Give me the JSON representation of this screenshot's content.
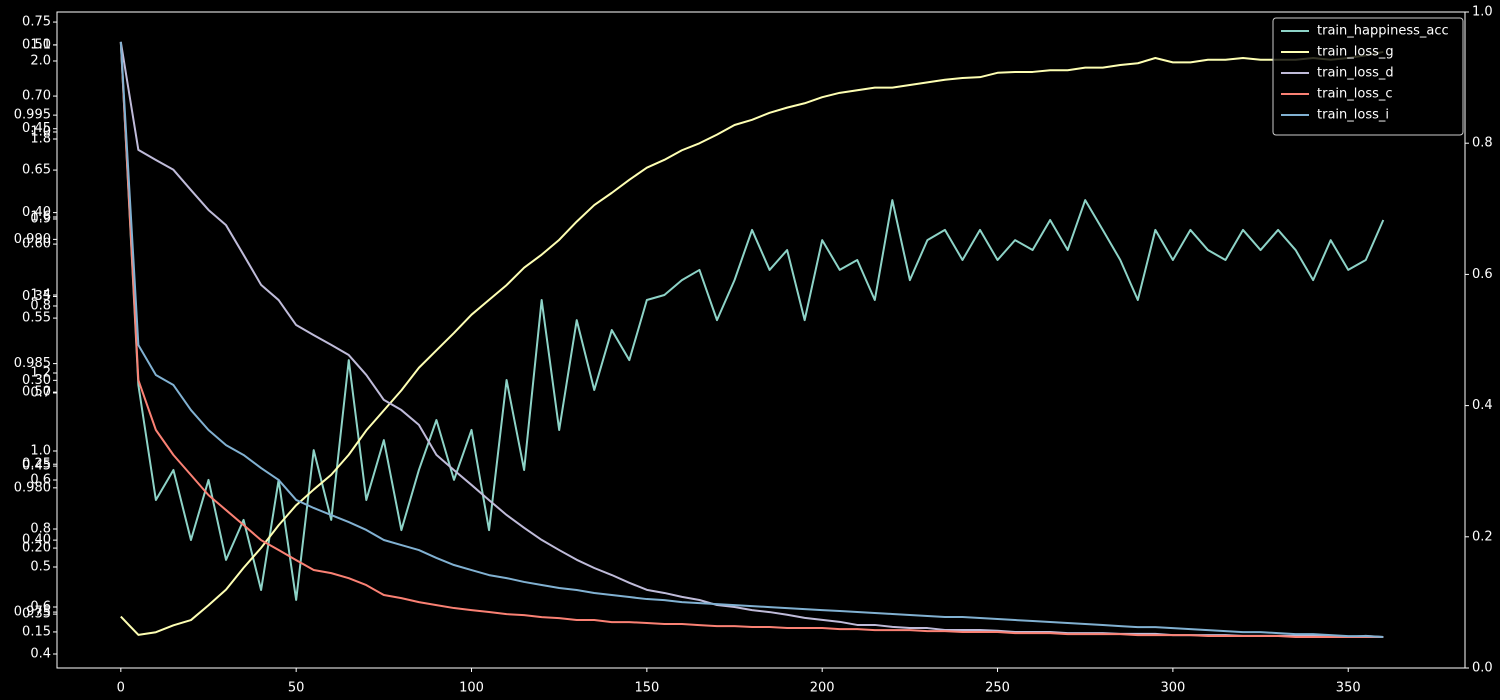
{
  "chart_data": {
    "type": "line",
    "x": [
      0,
      5,
      10,
      15,
      20,
      25,
      30,
      35,
      40,
      45,
      50,
      55,
      60,
      65,
      70,
      75,
      80,
      85,
      90,
      95,
      100,
      105,
      110,
      115,
      120,
      125,
      130,
      135,
      140,
      145,
      150,
      155,
      160,
      165,
      170,
      175,
      180,
      185,
      190,
      195,
      200,
      205,
      210,
      215,
      220,
      225,
      230,
      235,
      240,
      245,
      250,
      255,
      260,
      265,
      270,
      275,
      280,
      285,
      290,
      295,
      300,
      305,
      310,
      315,
      320,
      325,
      330,
      335,
      340,
      345,
      350,
      355,
      360
    ],
    "xlim": [
      -18.2,
      383.3
    ],
    "xticks": [
      0,
      50,
      100,
      150,
      200,
      250,
      300,
      350
    ],
    "legend": "upper right",
    "series": [
      {
        "name": "train_happiness_acc",
        "color": "#8dd3c7",
        "ylim": [
          0.97275,
          0.99915
        ],
        "yticks": [
          0.995,
          {
            "value": 0.99,
            "label": "0.990"
          },
          0.985,
          {
            "value": 0.98,
            "label": "0.980"
          },
          0.975
        ],
        "values": [
          0.99794,
          0.98414,
          0.97951,
          0.98072,
          0.9779,
          0.98032,
          0.9771,
          0.97871,
          0.97589,
          0.98032,
          0.97549,
          0.98152,
          0.97871,
          0.98514,
          0.97951,
          0.98192,
          0.9783,
          0.98072,
          0.98273,
          0.98032,
          0.98233,
          0.9783,
          0.98434,
          0.98072,
          0.98756,
          0.98233,
          0.98675,
          0.98394,
          0.98635,
          0.98514,
          0.98756,
          0.98776,
          0.98836,
          0.98877,
          0.98675,
          0.98836,
          0.99038,
          0.98877,
          0.98957,
          0.98675,
          0.98997,
          0.98877,
          0.98917,
          0.98756,
          0.99158,
          0.98836,
          0.98997,
          0.99038,
          0.98917,
          0.99038,
          0.98917,
          0.98997,
          0.98957,
          0.99078,
          0.98957,
          0.99158,
          0.99038,
          0.98917,
          0.98756,
          0.99038,
          0.98917,
          0.99038,
          0.98957,
          0.98917,
          0.99038,
          0.98957,
          0.99038,
          0.98957,
          0.98836,
          0.98997,
          0.98877,
          0.98917,
          0.99078
        ]
      },
      {
        "name": "train_loss_g",
        "color": "#feffb3",
        "ylim": [
          0.3839,
          1.1379
        ],
        "yticks": [
          1.1,
          {
            "value": 1.0,
            "label": "1.0"
          },
          0.9,
          0.8,
          0.7,
          0.6,
          0.5,
          0.4
        ],
        "values": [
          0.443,
          0.422,
          0.425,
          0.433,
          0.439,
          0.456,
          0.474,
          0.499,
          0.522,
          0.548,
          0.571,
          0.589,
          0.606,
          0.629,
          0.657,
          0.68,
          0.703,
          0.729,
          0.749,
          0.769,
          0.79,
          0.807,
          0.824,
          0.844,
          0.859,
          0.876,
          0.897,
          0.916,
          0.93,
          0.945,
          0.959,
          0.968,
          0.979,
          0.987,
          0.997,
          1.008,
          1.014,
          1.022,
          1.028,
          1.033,
          1.04,
          1.045,
          1.048,
          1.051,
          1.051,
          1.054,
          1.057,
          1.06,
          1.062,
          1.063,
          1.068,
          1.069,
          1.069,
          1.071,
          1.071,
          1.074,
          1.074,
          1.077,
          1.079,
          1.085,
          1.08,
          1.08,
          1.083,
          1.083,
          1.085,
          1.083,
          1.083,
          1.083,
          1.085,
          1.083,
          1.085,
          1.088,
          1.092
        ]
      },
      {
        "name": "train_loss_d",
        "color": "#bfbbd9",
        "ylim": [
          0.4436,
          2.1256
        ],
        "yticks": [
          {
            "value": 2.0,
            "label": "2.0"
          },
          1.8,
          1.6,
          1.4,
          1.2,
          {
            "value": 1.0,
            "label": "1.0"
          },
          0.8,
          0.6
        ],
        "values": [
          2.049,
          1.772,
          1.746,
          1.721,
          1.669,
          1.618,
          1.579,
          1.503,
          1.426,
          1.387,
          1.323,
          1.297,
          1.272,
          1.246,
          1.195,
          1.131,
          1.105,
          1.067,
          0.99,
          0.951,
          0.913,
          0.874,
          0.836,
          0.803,
          0.772,
          0.746,
          0.721,
          0.7,
          0.682,
          0.662,
          0.644,
          0.636,
          0.626,
          0.618,
          0.605,
          0.6,
          0.592,
          0.587,
          0.58,
          0.572,
          0.567,
          0.562,
          0.554,
          0.554,
          0.549,
          0.546,
          0.546,
          0.541,
          0.541,
          0.541,
          0.539,
          0.536,
          0.536,
          0.536,
          0.533,
          0.533,
          0.533,
          0.531,
          0.531,
          0.531,
          0.528,
          0.528,
          0.528,
          0.528,
          0.526,
          0.526,
          0.526,
          0.526,
          0.526,
          0.526,
          0.523,
          0.526,
          0.523
        ]
      },
      {
        "name": "train_loss_c",
        "color": "#fa8174",
        "ylim": [
          0.3136,
          0.7568
        ],
        "yticks": [
          0.75,
          {
            "value": 0.7,
            "label": "0.70"
          },
          0.65,
          {
            "value": 0.6,
            "label": "0.60"
          },
          0.55,
          {
            "value": 0.5,
            "label": "0.50"
          },
          0.45,
          {
            "value": 0.4,
            "label": "0.40"
          },
          0.35
        ],
        "values": [
          0.7365,
          0.5081,
          0.4744,
          0.4575,
          0.444,
          0.4304,
          0.4203,
          0.4102,
          0.4,
          0.3933,
          0.3865,
          0.3798,
          0.3777,
          0.3743,
          0.3696,
          0.3629,
          0.3608,
          0.3581,
          0.3561,
          0.3541,
          0.3527,
          0.3514,
          0.35,
          0.3493,
          0.348,
          0.3473,
          0.346,
          0.346,
          0.3446,
          0.3446,
          0.344,
          0.3433,
          0.3433,
          0.3426,
          0.3419,
          0.3419,
          0.3413,
          0.3413,
          0.3406,
          0.3406,
          0.3406,
          0.3399,
          0.3399,
          0.3392,
          0.3392,
          0.3392,
          0.3385,
          0.3385,
          0.3379,
          0.3379,
          0.3379,
          0.3372,
          0.3372,
          0.3372,
          0.3365,
          0.3365,
          0.3365,
          0.3365,
          0.3358,
          0.3358,
          0.3358,
          0.3358,
          0.3352,
          0.3352,
          0.3352,
          0.3352,
          0.3352,
          0.3345,
          0.3345,
          0.3345,
          0.3345,
          0.3345,
          0.3345
        ]
      },
      {
        "name": "train_loss_i",
        "color": "#81b1d2",
        "ylim": [
          0.1285,
          0.5196
        ],
        "yticks": [
          {
            "value": 0.5,
            "label": "0.50"
          },
          0.45,
          {
            "value": 0.4,
            "label": "0.40"
          },
          0.35,
          {
            "value": 0.3,
            "label": "0.30"
          },
          0.25,
          {
            "value": 0.2,
            "label": "0.20"
          },
          0.15
        ],
        "values": [
          0.5018,
          0.3211,
          0.3032,
          0.2972,
          0.2823,
          0.2704,
          0.2614,
          0.2555,
          0.2477,
          0.2406,
          0.2287,
          0.2239,
          0.2197,
          0.2155,
          0.2108,
          0.2048,
          0.2018,
          0.1988,
          0.1941,
          0.1899,
          0.1869,
          0.1839,
          0.1821,
          0.1798,
          0.178,
          0.1762,
          0.175,
          0.1732,
          0.172,
          0.1708,
          0.1696,
          0.169,
          0.1678,
          0.1672,
          0.1666,
          0.166,
          0.1654,
          0.1648,
          0.1642,
          0.1636,
          0.163,
          0.1625,
          0.1619,
          0.1613,
          0.1607,
          0.1601,
          0.1595,
          0.1589,
          0.1589,
          0.1583,
          0.1577,
          0.1571,
          0.1565,
          0.1559,
          0.1553,
          0.1547,
          0.1541,
          0.1535,
          0.1529,
          0.1529,
          0.1523,
          0.1517,
          0.1511,
          0.1505,
          0.1499,
          0.1499,
          0.1493,
          0.1487,
          0.1487,
          0.1481,
          0.1475,
          0.1475,
          0.147
        ]
      }
    ],
    "y2lim": [
      0,
      1
    ],
    "y2ticks": [
      {
        "value": 0,
        "label": "0.0"
      },
      0.2,
      0.4,
      0.6,
      0.8,
      {
        "value": 1,
        "label": "1.0"
      }
    ]
  }
}
